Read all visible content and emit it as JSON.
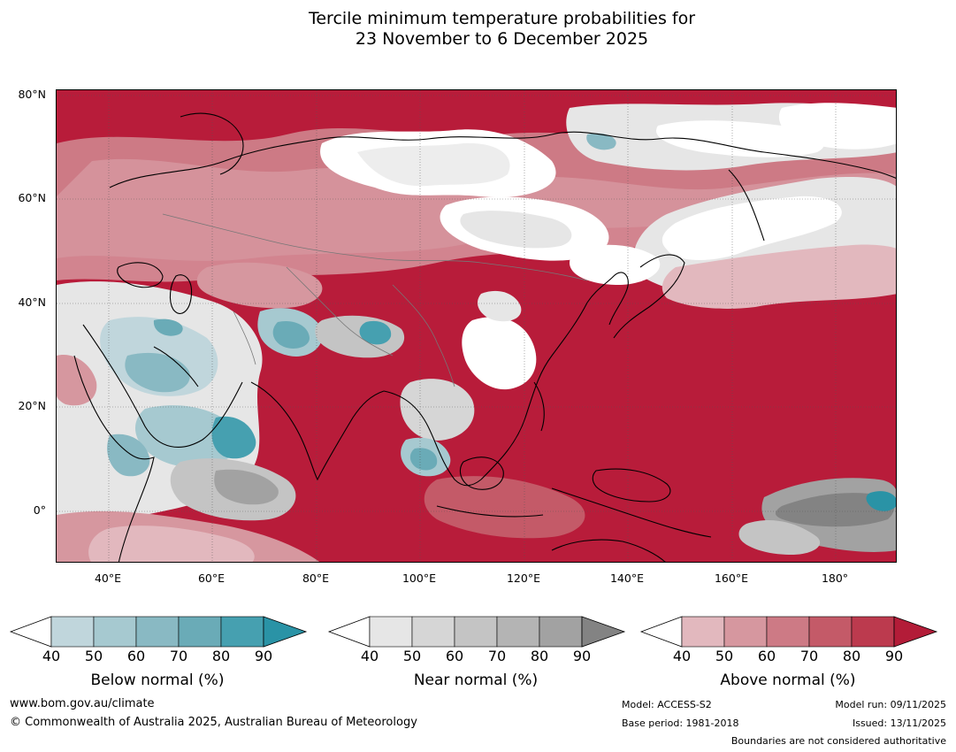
{
  "title_line1": "Tercile minimum temperature probabilities for",
  "title_line2": "23 November to 6 December 2025",
  "lat_labels": [
    "80°N",
    "60°N",
    "40°N",
    "20°N",
    "0°"
  ],
  "lon_labels": [
    "40°E",
    "60°E",
    "80°E",
    "100°E",
    "120°E",
    "140°E",
    "160°E",
    "180°"
  ],
  "legend": {
    "below": {
      "title": "Below normal (%)",
      "ticks": [
        "40",
        "50",
        "60",
        "70",
        "80",
        "90"
      ],
      "colors": [
        "#c0d6dc",
        "#a6c9d0",
        "#89b9c3",
        "#6aabb7",
        "#46a0b0",
        "#2a93a6"
      ]
    },
    "near": {
      "title": "Near normal (%)",
      "ticks": [
        "40",
        "50",
        "60",
        "70",
        "80",
        "90"
      ],
      "colors": [
        "#e6e6e6",
        "#d6d6d6",
        "#c4c4c4",
        "#b4b4b4",
        "#a2a2a2",
        "#838383"
      ]
    },
    "above": {
      "title": "Above normal (%)",
      "ticks": [
        "40",
        "50",
        "60",
        "70",
        "80",
        "90"
      ],
      "colors": [
        "#e2b8be",
        "#d6979f",
        "#cd7a85",
        "#c45a68",
        "#bc3a4e",
        "#b31c38"
      ]
    }
  },
  "footer": {
    "website": "www.bom.gov.au/climate",
    "copyright": "© Commonwealth of Australia 2025, Australian Bureau of Meteorology",
    "model": "Model: ACCESS-S2",
    "base_period": "Base period: 1981-2018",
    "model_run": "Model run: 09/11/2025",
    "issued": "Issued: 13/11/2025",
    "disclaimer": "Boundaries are not considered authoritative"
  }
}
